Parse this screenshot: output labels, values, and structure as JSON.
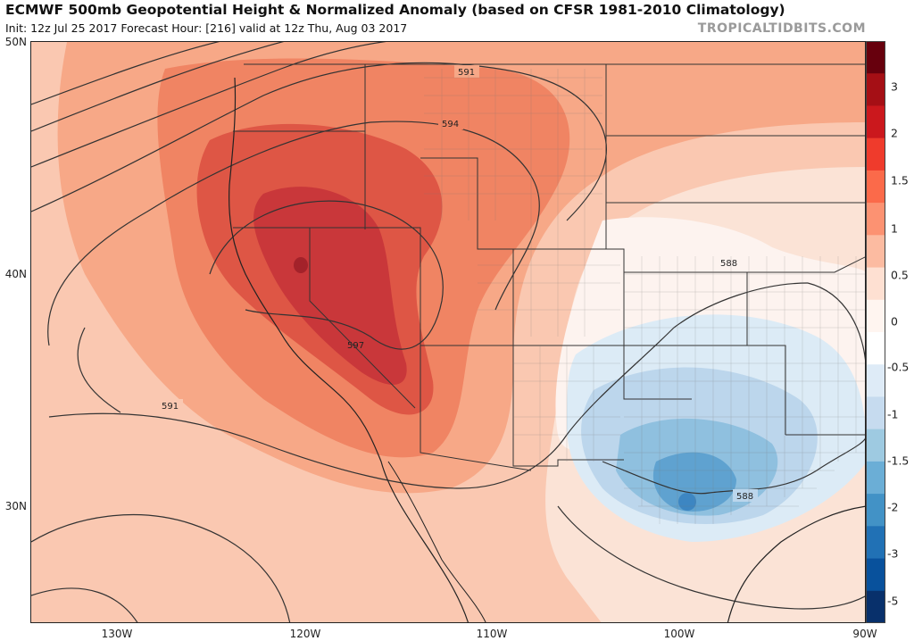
{
  "title": "ECMWF 500mb Geopotential Height & Normalized Anomaly (based on CFSR 1981-2010 Climatology)",
  "subtitle": "Init: 12z Jul 25 2017   Forecast Hour: [216]   valid at 12z Thu, Aug 03 2017",
  "brand": "TROPICALTIDBITS.COM",
  "map": {
    "lat_labels": [
      "50N",
      "40N",
      "30N"
    ],
    "lon_labels": [
      "130W",
      "120W",
      "110W",
      "100W",
      "90W"
    ],
    "contour_labels": [
      "591",
      "594",
      "597",
      "588",
      "591",
      "588"
    ]
  },
  "colorbar": {
    "ticks": [
      "3",
      "2",
      "1.5",
      "1",
      "0.5",
      "0",
      "-0.5",
      "-1",
      "-1.5",
      "-2",
      "-3",
      "-5"
    ],
    "colors": [
      "#67000d",
      "#a50f15",
      "#cb181d",
      "#ef3b2c",
      "#fb6a4a",
      "#fc9272",
      "#fcbba1",
      "#fee0d2",
      "#fff5f0",
      "#ffffff",
      "#deebf7",
      "#c6dbef",
      "#9ecae1",
      "#6baed6",
      "#4292c6",
      "#2171b5",
      "#08519c",
      "#08306b"
    ]
  }
}
